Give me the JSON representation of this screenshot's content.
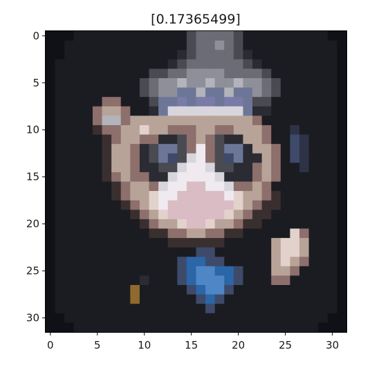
{
  "chart_data": {
    "type": "heatmap",
    "title": "[0.17365499]",
    "xlabel": "",
    "ylabel": "",
    "xlim": [
      -0.5,
      31.5
    ],
    "ylim": [
      31.5,
      -0.5
    ],
    "x_ticks": [
      0,
      5,
      10,
      15,
      20,
      25,
      30
    ],
    "y_ticks": [
      0,
      5,
      10,
      15,
      20,
      25,
      30
    ],
    "x_tick_labels": [
      "0",
      "5",
      "10",
      "15",
      "20",
      "25",
      "30"
    ],
    "y_tick_labels": [
      "0",
      "5",
      "10",
      "15",
      "20",
      "25",
      "30"
    ],
    "grid": false,
    "grid_size": [
      32,
      32
    ],
    "palette": {
      "a": "#101116",
      "b": "#1b1c22",
      "c": "#2a2b33",
      "d": "#494a52",
      "e": "#6b6c75",
      "f": "#8e8f98",
      "g": "#b2b3bb",
      "h": "#d8d6dc",
      "i": "#efeaf0",
      "j": "#d9bcc4",
      "k": "#8d6f6c",
      "l": "#5c4a48",
      "m": "#6e7698",
      "n": "#3e4a6a",
      "o": "#2a66a8",
      "p": "#4e86c6",
      "q": "#8f6a2c",
      "r": "#b8a398",
      "s": "#e3d2cb",
      "t": "#3a2f2f",
      "u": "#7a7ba6",
      "v": "#2e3246"
    },
    "rows": [
      "aaabbbbbbbbbbbbdeeeedbbbbbbbbbaa",
      "aabbbbbbbbbbbbbdeefedbbbbbbbbbba",
      "aabbbbbbbbbbbbcdeeeedcbbbbbbbbba",
      "abbbbbbbbbbbbcdeeeeeedcbbbbbbbba",
      "abbbbbbbbbbddeeffffeeeedbbbbbbba",
      "abbbbbbbbbdeffgffgffgffedbbbbbba",
      "abbbbbbbbbdeffmmgmmgmmfedbbbbbba",
      "abbbbbkkbbbdmmumuumuumddbbbbbbba",
      "abbbbkrrkbbcmhhhhhhhhmccbbbbbbba",
      "abbbbkggkrrrrrrrrrrrrrkbbbbbbbba",
      "abbbbtkkrrsrrkkkrrkkrrrkbbvbbbba",
      "abbbbbtkrrkkccdkrkdccrrkbbnvbbba",
      "abbbbbtrrkcdmmdkikdmmcrrkbnvbbba",
      "abbbbbtrrkcdmndhikdnmccrkbnvbbba",
      "abbbbbtrrkccddhiihddcckrkbbvbbba",
      "abbbbbtkrkkcchiiiihccckrkbbbbbba",
      "abbbbbbtkrrkhiijjiihkkrkbbbbbbba",
      "abbbbbbtkrrsiijjjjjisrrktbbbbbba",
      "abbbbbbbtkrsijjjjjjjsrkttbbbbbba",
      "abbbbbbbbtkrsjjjjjjsrkttbbbbbbba",
      "abbbbbbbbbtkrrsjjsrrkttbbbbbbbba",
      "abbbbbbbbbbttkkrrkkttbbbbbskbbba",
      "abbbbbbbbbbbbttttttbbbbbrssrbbba",
      "abbbbbbbbbbbbbbbnnbbbbbbrssrbbba",
      "abbbbbbbbbbbbbnoonnbbbbbrsrkbbba",
      "abbbbbbbbbbbbbnoppoonbbbrrkbbbba",
      "abbbbbbbbbcbbbnoppponbbbkkbbbbba",
      "abbbbbbbbqbbbbbnoppnbbbbbbbbbbba",
      "abbbbbbbbqbbbbbbnonbbbbbbbbbbbba",
      "abbbbbbbbbbbbbbbbnbbbbbbbbbbbbba",
      "aabbbbbbbbbbbbbbbbbbbbbbbbbbbbaa",
      "aaabbbbbbbbbbbbbbbbbbbbbbbbbbaaa"
    ]
  }
}
